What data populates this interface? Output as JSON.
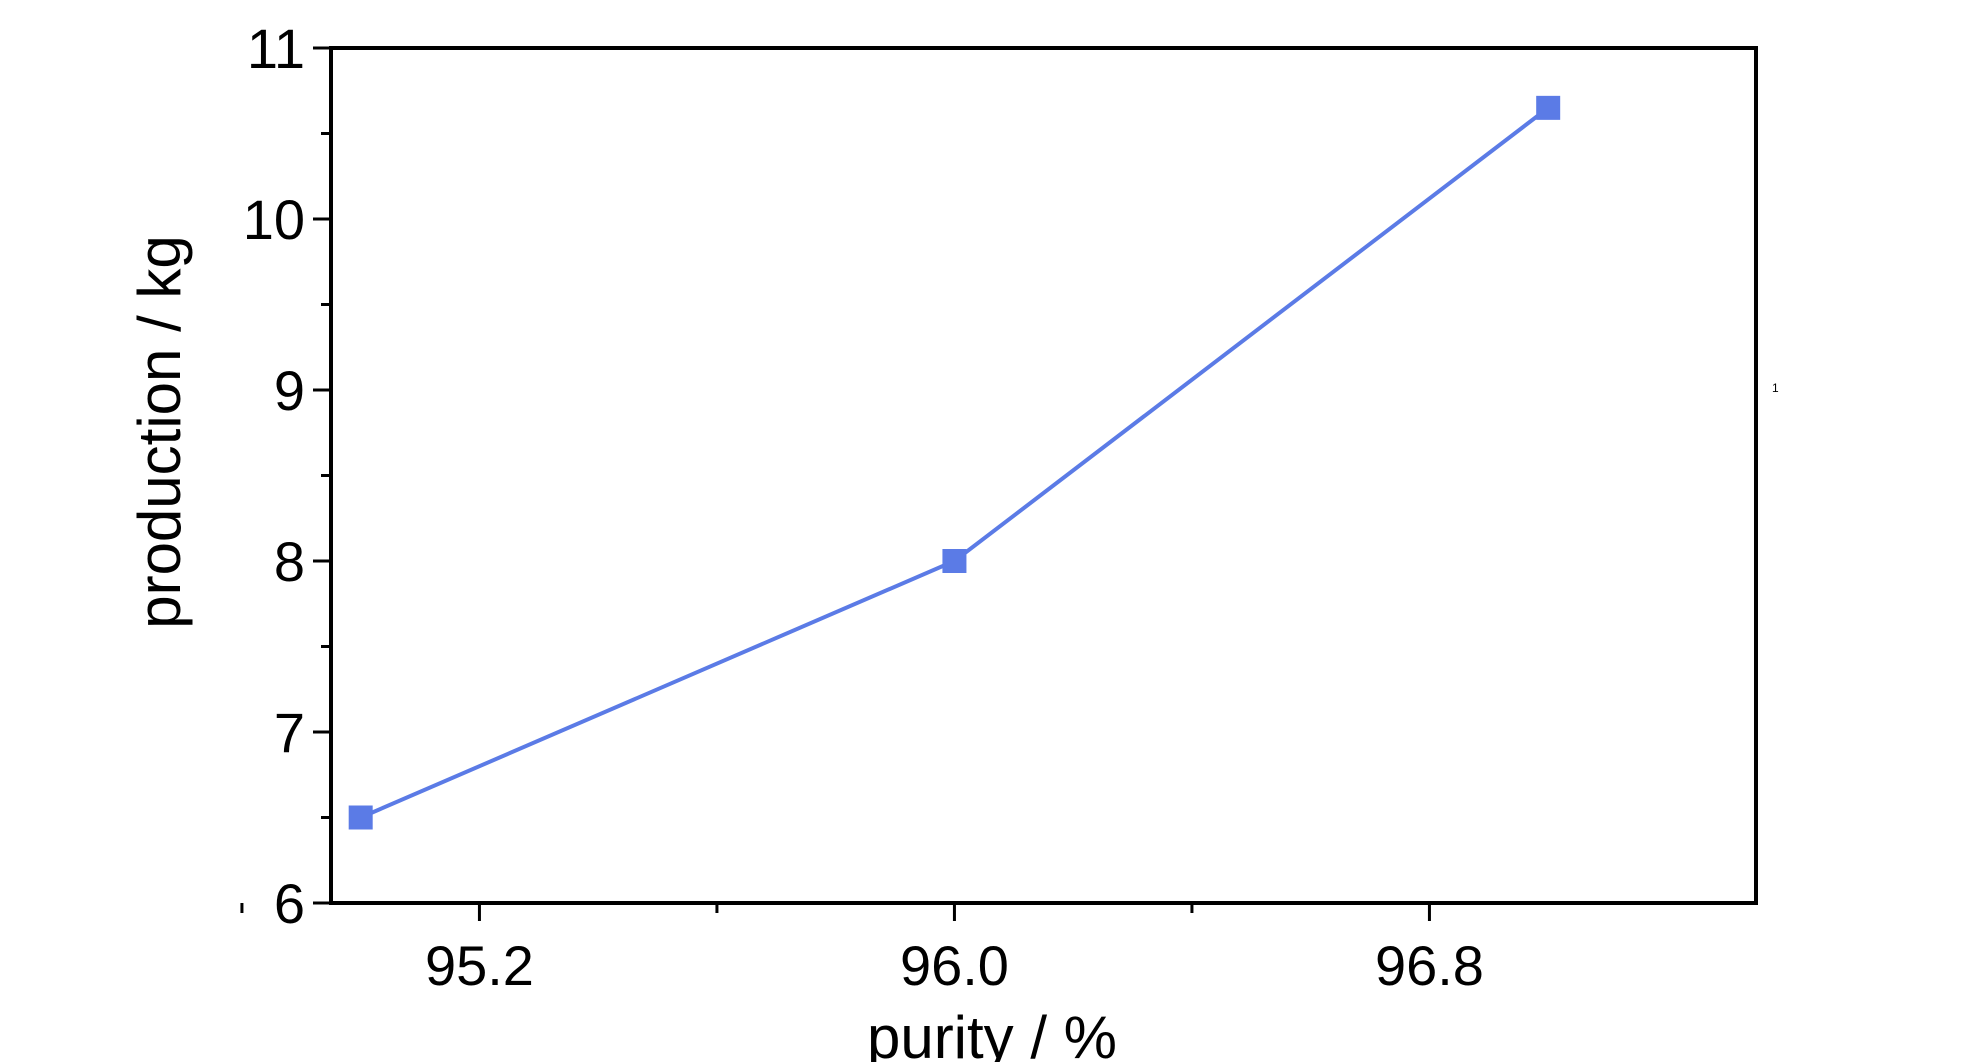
{
  "chart_data": {
    "type": "line",
    "title": "",
    "xlabel": "purity / %",
    "ylabel": "production / kg",
    "xlim": [
      94.95,
      97.35
    ],
    "ylim": [
      6,
      11
    ],
    "x_ticks": [
      "95.2",
      "96.0",
      "96.8"
    ],
    "y_ticks": [
      "6",
      "7",
      "8",
      "9",
      "10",
      "11"
    ],
    "grid": false,
    "legend": "none",
    "series": [
      {
        "color": "#5b7be6",
        "marker": "square",
        "x": [
          95.0,
          96.0,
          97.0
        ],
        "y": [
          6.5,
          8.0,
          10.65
        ]
      }
    ],
    "annotation": "1"
  }
}
